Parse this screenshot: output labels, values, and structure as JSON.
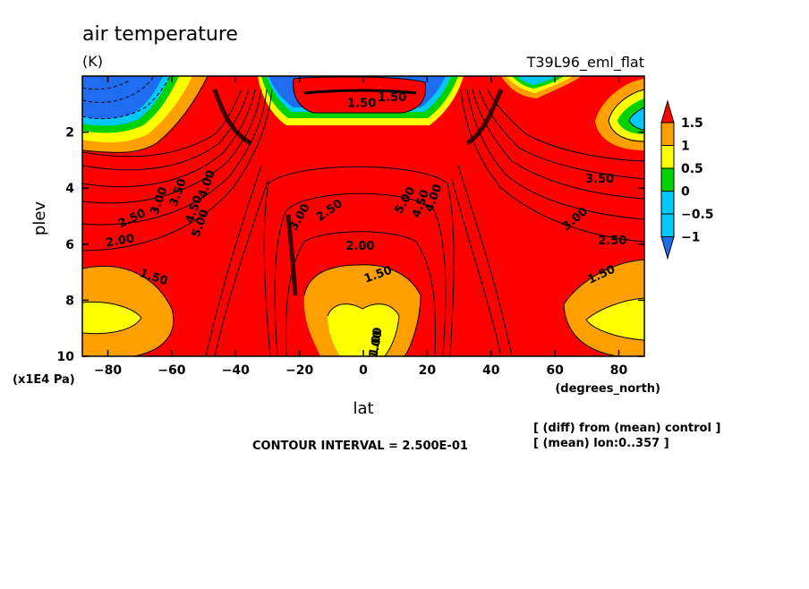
{
  "chart_data": {
    "type": "heatmap",
    "title": "air temperature",
    "units": "(K)",
    "experiment": "T39L96_eml_flat",
    "xlabel": "lat",
    "x_units": "(degrees_north)",
    "ylabel": "plev",
    "y_units": "(x1E4 Pa)",
    "xlim": [
      -88,
      88
    ],
    "ylim": [
      10,
      0
    ],
    "x_ticks": [
      -80,
      -60,
      -40,
      -20,
      0,
      20,
      40,
      60,
      80
    ],
    "y_ticks": [
      2,
      4,
      6,
      8,
      10
    ],
    "colorbar": {
      "levels": [
        -1,
        -0.5,
        0,
        0.5,
        1,
        1.5
      ],
      "labels": [
        "1.5",
        "1",
        "0.5",
        "0",
        "−0.5",
        "−1"
      ],
      "colors": [
        "#1e6cf0",
        "#00c8ff",
        "#00d200",
        "#ffff00",
        "#ffa000",
        "#ff0000"
      ]
    },
    "contour_labels": [
      "1.50",
      "2.00",
      "2.50",
      "3.00",
      "3.50",
      "4.00",
      "4.50",
      "5.00",
      "1.00",
      "3.00",
      "2.50",
      "1.50",
      "2.00",
      "1.50",
      "1.00",
      "5.00",
      "4.50",
      "4.00",
      "3.50",
      "3.00",
      "2.50",
      "1.50",
      "1.50"
    ],
    "footer_note": "CONTOUR INTERVAL = 2.500E-01",
    "notes": [
      "[ (diff) from (mean) control ]",
      "[ (mean) lon:0..357 ]"
    ]
  },
  "colors": {
    "red": "#ff0000",
    "orange": "#ffa000",
    "yellow": "#ffff00",
    "green": "#00d200",
    "cyan": "#00c8ff",
    "blue": "#1e6cf0"
  }
}
